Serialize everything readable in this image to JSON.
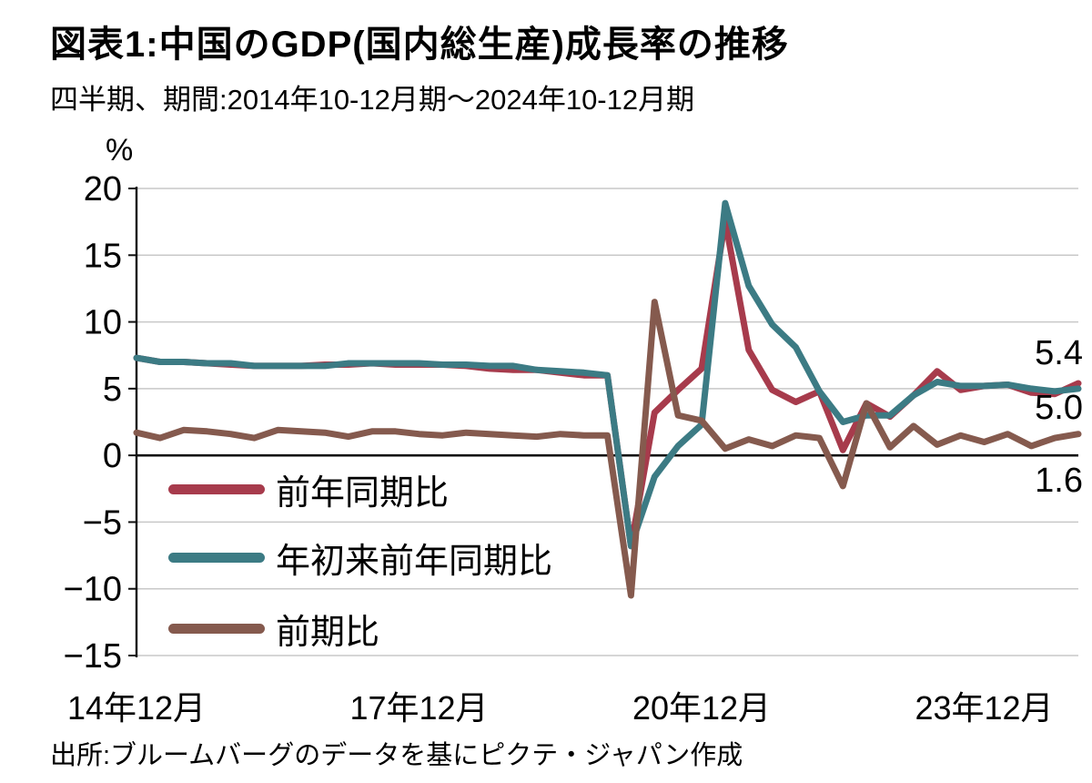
{
  "page": {
    "title": "図表1:中国のGDP(国内総生産)成長率の推移",
    "subtitle": "四半期、期間:2014年10-12月期〜2024年10-12月期",
    "source": "出所:ブルームバーグのデータを基にピクテ・ジャパン作成"
  },
  "chart_data": {
    "type": "line",
    "title": "中国のGDP(国内総生産)成長率の推移",
    "unit_label": "%",
    "frequency": "quarterly",
    "period_start_label": "2014年10-12月期",
    "period_end_label": "2024年10-12月期",
    "ylim": [
      -15,
      20
    ],
    "grid": true,
    "legend_position": "inside-left-bottom",
    "yticks": [
      20,
      15,
      10,
      5,
      0,
      -5,
      -10,
      -15
    ],
    "ytick_labels": [
      "20",
      "15",
      "10",
      "5",
      "0",
      "−5",
      "−10",
      "−15"
    ],
    "xtick_labels": [
      {
        "index": 0,
        "label": "14年12月"
      },
      {
        "index": 12,
        "label": "17年12月"
      },
      {
        "index": 24,
        "label": "20年12月"
      },
      {
        "index": 36,
        "label": "23年12月"
      }
    ],
    "series": [
      {
        "name": "前年同期比",
        "color": "#a73b4c",
        "end_label": "5.4",
        "values": [
          7.3,
          7.0,
          7.0,
          6.9,
          6.8,
          6.7,
          6.7,
          6.7,
          6.8,
          6.8,
          6.9,
          6.8,
          6.8,
          6.8,
          6.7,
          6.5,
          6.4,
          6.4,
          6.2,
          6.0,
          6.0,
          -6.8,
          3.2,
          4.9,
          6.5,
          17.6,
          7.9,
          4.9,
          4.0,
          4.8,
          0.4,
          3.9,
          2.9,
          4.5,
          6.3,
          4.9,
          5.2,
          5.3,
          4.7,
          4.6,
          5.4
        ]
      },
      {
        "name": "年初来前年同期比",
        "color": "#3c7b84",
        "end_label": "5.0",
        "values": [
          7.3,
          7.0,
          7.0,
          6.9,
          6.9,
          6.7,
          6.7,
          6.7,
          6.7,
          6.9,
          6.9,
          6.9,
          6.9,
          6.8,
          6.8,
          6.7,
          6.7,
          6.4,
          6.3,
          6.2,
          6.0,
          -6.8,
          -1.6,
          0.7,
          2.3,
          18.9,
          12.7,
          9.8,
          8.1,
          4.8,
          2.5,
          3.0,
          3.0,
          4.5,
          5.5,
          5.2,
          5.2,
          5.3,
          5.0,
          4.8,
          5.0
        ]
      },
      {
        "name": "前期比",
        "color": "#855a4e",
        "end_label": "1.6",
        "values": [
          1.7,
          1.3,
          1.9,
          1.8,
          1.6,
          1.3,
          1.9,
          1.8,
          1.7,
          1.4,
          1.8,
          1.8,
          1.6,
          1.5,
          1.7,
          1.6,
          1.5,
          1.4,
          1.6,
          1.5,
          1.5,
          -10.5,
          11.5,
          3.0,
          2.6,
          0.5,
          1.2,
          0.7,
          1.5,
          1.3,
          -2.3,
          3.9,
          0.6,
          2.2,
          0.8,
          1.5,
          1.0,
          1.6,
          0.7,
          1.3,
          1.6
        ]
      }
    ]
  }
}
